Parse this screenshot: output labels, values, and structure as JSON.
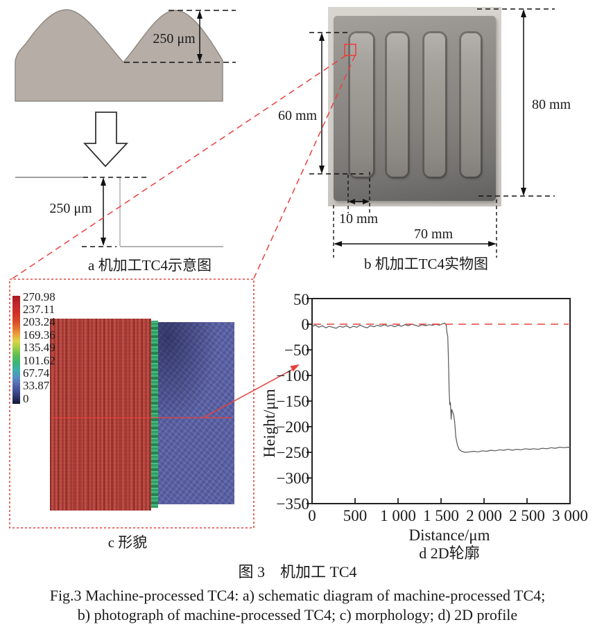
{
  "figure": {
    "caption_zh": "图 3　机加工 TC4",
    "caption_en_line1": "Fig.3 Machine-processed TC4: a) schematic diagram of machine-processed TC4;",
    "caption_en_line2": "b) photograph of machine-processed TC4; c) morphology; d) 2D profile"
  },
  "panel_a": {
    "caption": "a 机加工TC4示意图",
    "dim_peak": "250 μm",
    "dim_step": "250 μm"
  },
  "panel_b": {
    "caption": "b 机加工TC4实物图",
    "dim_left_height": "60 mm",
    "dim_right_height": "80 mm",
    "dim_groove_width": "10 mm",
    "dim_plate_width": "70 mm"
  },
  "panel_c": {
    "caption": "c 形貌",
    "colorbar": {
      "labels": [
        "270.98",
        "237.11",
        "203.24",
        "169.36",
        "135.49",
        "101.62",
        "67.74",
        "33.87",
        "0"
      ]
    }
  },
  "panel_d": {
    "caption": "d 2D轮廓"
  },
  "chart_data": {
    "type": "line",
    "title": "",
    "xlabel": "Distance/μm",
    "ylabel": "Height/μm",
    "xlim": [
      0,
      3000
    ],
    "ylim": [
      -350,
      50
    ],
    "grid": false,
    "xticks": [
      0,
      500,
      1000,
      1500,
      2000,
      2500,
      3000
    ],
    "xtick_labels": [
      "0",
      "500",
      "1 000",
      "1 500",
      "2 000",
      "2 500",
      "3 000"
    ],
    "yticks": [
      50,
      0,
      -50,
      -100,
      -150,
      -200,
      -250,
      -300,
      -350
    ],
    "ytick_labels": [
      "50",
      "0",
      "−50",
      "−100",
      "−150",
      "−200",
      "−250",
      "−300",
      "−350"
    ],
    "reference_line": {
      "y": 0,
      "style": "dashed",
      "color": "#e8413c"
    },
    "series": [
      {
        "name": "2D profile",
        "color": "#555555",
        "points": [
          [
            0,
            -4
          ],
          [
            40,
            -2
          ],
          [
            80,
            -6
          ],
          [
            120,
            -3
          ],
          [
            160,
            -7
          ],
          [
            200,
            -4
          ],
          [
            240,
            -6
          ],
          [
            280,
            -8
          ],
          [
            320,
            -4
          ],
          [
            360,
            -6
          ],
          [
            400,
            -3
          ],
          [
            440,
            -7
          ],
          [
            480,
            -4
          ],
          [
            520,
            -6
          ],
          [
            560,
            -2
          ],
          [
            600,
            -5
          ],
          [
            640,
            -7
          ],
          [
            680,
            -3
          ],
          [
            720,
            -5
          ],
          [
            760,
            -2
          ],
          [
            800,
            -4
          ],
          [
            840,
            -1
          ],
          [
            880,
            -4
          ],
          [
            920,
            -2
          ],
          [
            960,
            -5
          ],
          [
            1000,
            -2
          ],
          [
            1040,
            -4
          ],
          [
            1080,
            -1
          ],
          [
            1120,
            -3
          ],
          [
            1160,
            0
          ],
          [
            1200,
            -2
          ],
          [
            1240,
            -4
          ],
          [
            1280,
            -1
          ],
          [
            1320,
            -3
          ],
          [
            1360,
            -1
          ],
          [
            1400,
            -2
          ],
          [
            1440,
            0
          ],
          [
            1480,
            -2
          ],
          [
            1520,
            1
          ],
          [
            1545,
            2
          ],
          [
            1560,
            -2
          ],
          [
            1570,
            -18
          ],
          [
            1578,
            -24
          ],
          [
            1586,
            -70
          ],
          [
            1594,
            -130
          ],
          [
            1602,
            -158
          ],
          [
            1608,
            -152
          ],
          [
            1614,
            -170
          ],
          [
            1618,
            -186
          ],
          [
            1624,
            -166
          ],
          [
            1632,
            -170
          ],
          [
            1645,
            -176
          ],
          [
            1658,
            -190
          ],
          [
            1672,
            -220
          ],
          [
            1690,
            -236
          ],
          [
            1710,
            -244
          ],
          [
            1740,
            -248
          ],
          [
            1780,
            -250
          ],
          [
            1830,
            -249
          ],
          [
            1880,
            -248
          ],
          [
            1930,
            -249
          ],
          [
            1980,
            -247
          ],
          [
            2030,
            -248
          ],
          [
            2080,
            -246
          ],
          [
            2130,
            -247
          ],
          [
            2180,
            -245
          ],
          [
            2230,
            -246
          ],
          [
            2280,
            -244
          ],
          [
            2330,
            -246
          ],
          [
            2380,
            -244
          ],
          [
            2430,
            -245
          ],
          [
            2480,
            -243
          ],
          [
            2530,
            -244
          ],
          [
            2580,
            -243
          ],
          [
            2630,
            -244
          ],
          [
            2680,
            -242
          ],
          [
            2730,
            -243
          ],
          [
            2780,
            -241
          ],
          [
            2830,
            -242
          ],
          [
            2880,
            -240
          ],
          [
            2930,
            -241
          ],
          [
            2970,
            -240
          ],
          [
            3000,
            -240
          ]
        ]
      }
    ]
  },
  "colors": {
    "accent_red": "#e8413c",
    "schematic_fill": "#b6ada7",
    "page_bg": "#ffffff"
  }
}
